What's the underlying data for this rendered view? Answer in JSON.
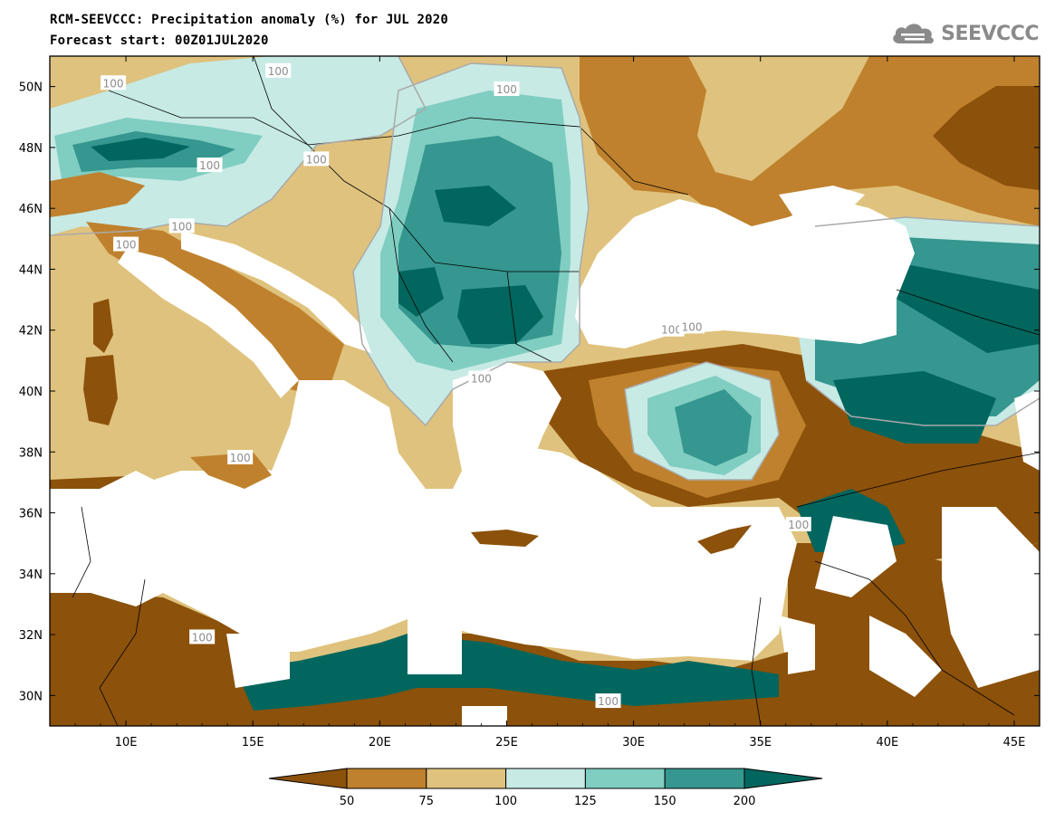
{
  "header": {
    "title_line1": "RCM-SEEVCCC: Precipitation anomaly (%) for JUL 2020",
    "title_line2": "Forecast start: 00Z01JUL2020"
  },
  "logo": {
    "text": "SEEVCCC",
    "icon": "cloud-icon",
    "color": "#8a8a8a"
  },
  "map": {
    "lon_range": [
      7,
      46
    ],
    "lat_range": [
      29,
      51
    ],
    "lon_ticks": [
      "10E",
      "15E",
      "20E",
      "25E",
      "30E",
      "35E",
      "40E",
      "45E"
    ],
    "lat_ticks": [
      "30N",
      "32N",
      "34N",
      "36N",
      "38N",
      "40N",
      "42N",
      "44N",
      "46N",
      "48N",
      "50N"
    ],
    "contour_label": "100",
    "colors": {
      "below_50": "#8c510a",
      "50_75": "#bf812d",
      "75_100": "#dfc27d",
      "100_125": "#c7eae5",
      "125_150": "#80cdc1",
      "150_200": "#35978f",
      "above_200": "#01665e",
      "sea": "#ffffff"
    }
  },
  "colorbar": {
    "levels": [
      "50",
      "75",
      "100",
      "125",
      "150",
      "200"
    ],
    "colors": [
      "#8c510a",
      "#bf812d",
      "#dfc27d",
      "#c7eae5",
      "#80cdc1",
      "#35978f",
      "#01665e"
    ]
  }
}
